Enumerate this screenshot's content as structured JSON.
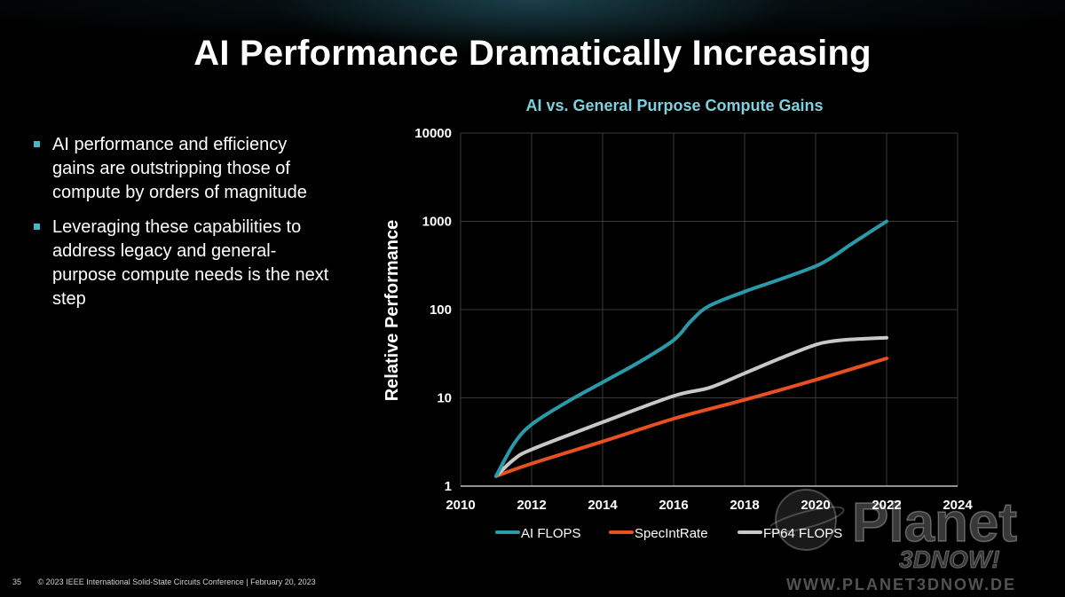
{
  "slide": {
    "title": "AI Performance Dramatically Increasing",
    "bullets": [
      "AI performance and efficiency gains are outstripping those of compute by orders of magnitude",
      "Leveraging these capabilities to address legacy and general-purpose compute needs is the next step"
    ]
  },
  "footer": {
    "page_number": "35",
    "text": "© 2023 IEEE International Solid-State Circuits Conference  |  February 20, 2023"
  },
  "watermark": {
    "brand": "Planet",
    "sub": "3DNOW!",
    "url": "WWW.PLANET3DNOW.DE"
  },
  "colors": {
    "background": "#000000",
    "accent": "#45b7c6",
    "ai_flops": "#2a9aa8",
    "specintrate": "#e8511f",
    "fp64_flops": "#c8c8c8",
    "grid": "#3a3a3a",
    "chart_title": "#7fd0dc"
  },
  "chart_data": {
    "type": "line",
    "title": "AI vs. General Purpose Compute Gains",
    "xlabel": "",
    "ylabel": "Relative Performance",
    "y_scale": "log",
    "xlim": [
      2010,
      2024
    ],
    "ylim": [
      1,
      10000
    ],
    "x_ticks": [
      "2010",
      "2012",
      "2014",
      "2016",
      "2018",
      "2020",
      "2022",
      "2024"
    ],
    "y_ticks": [
      "1",
      "10",
      "100",
      "1000",
      "10000"
    ],
    "grid": true,
    "legend_position": "bottom",
    "series": [
      {
        "name": "AI FLOPS",
        "color": "#2a9aa8",
        "x": [
          2011,
          2011.5,
          2012,
          2013,
          2014,
          2015,
          2016,
          2016.5,
          2017,
          2018,
          2019,
          2020,
          2020.5,
          2021,
          2022
        ],
        "y": [
          1.3,
          3,
          5,
          9,
          15,
          25,
          45,
          75,
          110,
          160,
          220,
          310,
          400,
          550,
          1000
        ]
      },
      {
        "name": "SpecIntRate",
        "color": "#e8511f",
        "x": [
          2011,
          2012,
          2014,
          2016,
          2018,
          2020,
          2022
        ],
        "y": [
          1.3,
          1.8,
          3.2,
          5.8,
          9.5,
          16,
          28
        ]
      },
      {
        "name": "FP64 FLOPS",
        "color": "#c8c8c8",
        "x": [
          2011,
          2011.5,
          2012,
          2014,
          2016,
          2017,
          2018,
          2019,
          2020,
          2020.5,
          2021,
          2022
        ],
        "y": [
          1.3,
          2,
          2.6,
          5.3,
          10.5,
          13,
          19,
          28,
          40,
          44,
          46,
          48
        ]
      }
    ]
  }
}
